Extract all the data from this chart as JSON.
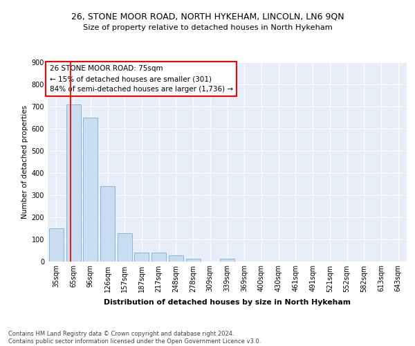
{
  "title": "26, STONE MOOR ROAD, NORTH HYKEHAM, LINCOLN, LN6 9QN",
  "subtitle": "Size of property relative to detached houses in North Hykeham",
  "xlabel": "Distribution of detached houses by size in North Hykeham",
  "ylabel": "Number of detached properties",
  "footnote": "Contains HM Land Registry data © Crown copyright and database right 2024.\nContains public sector information licensed under the Open Government Licence v3.0.",
  "categories": [
    "35sqm",
    "65sqm",
    "96sqm",
    "126sqm",
    "157sqm",
    "187sqm",
    "217sqm",
    "248sqm",
    "278sqm",
    "309sqm",
    "339sqm",
    "369sqm",
    "400sqm",
    "430sqm",
    "461sqm",
    "491sqm",
    "521sqm",
    "552sqm",
    "582sqm",
    "613sqm",
    "643sqm"
  ],
  "values": [
    150,
    710,
    650,
    340,
    128,
    40,
    38,
    27,
    10,
    0,
    10,
    0,
    0,
    0,
    0,
    0,
    0,
    0,
    0,
    0,
    0
  ],
  "bar_color": "#c9ddf2",
  "bar_edge_color": "#7aafd4",
  "annotation_line1": "26 STONE MOOR ROAD: 75sqm",
  "annotation_line2": "← 15% of detached houses are smaller (301)",
  "annotation_line3": "84% of semi-detached houses are larger (1,736) →",
  "ylim": [
    0,
    900
  ],
  "yticks": [
    0,
    100,
    200,
    300,
    400,
    500,
    600,
    700,
    800,
    900
  ],
  "plot_bg_color": "#e8eef8",
  "grid_color": "#ffffff",
  "title_fontsize": 9.0,
  "subtitle_fontsize": 8.2,
  "ylabel_fontsize": 7.5,
  "xlabel_fontsize": 7.8,
  "tick_fontsize": 7.0,
  "annot_fontsize": 7.5,
  "footnote_fontsize": 6.0
}
